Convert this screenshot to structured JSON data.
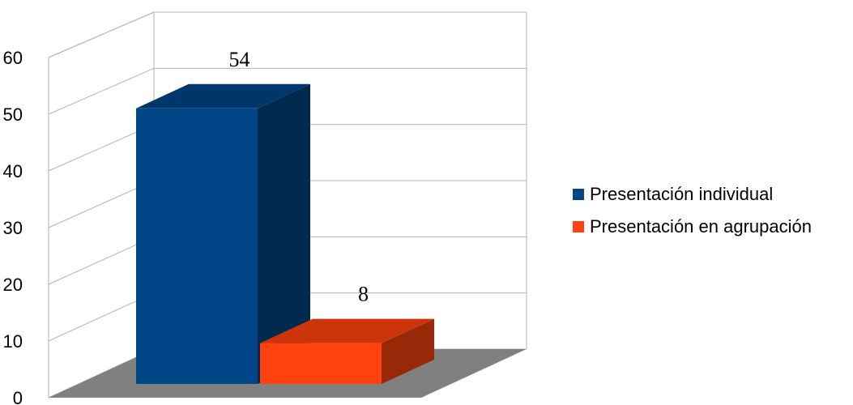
{
  "chart_data": {
    "type": "bar",
    "categories": [
      ""
    ],
    "series": [
      {
        "name": "Presentación individual",
        "values": [
          54
        ],
        "color": "#004586"
      },
      {
        "name": "Presentación en agrupación",
        "values": [
          8
        ],
        "color": "#ff420e"
      }
    ],
    "data_labels": [
      "54",
      "8"
    ],
    "yticks": [
      "0",
      "10",
      "20",
      "30",
      "40",
      "50",
      "60"
    ],
    "ylim": [
      0,
      60
    ],
    "grid": true,
    "three_d": true,
    "floor_color": "#808080",
    "legend_position": "right",
    "title": "",
    "xlabel": "",
    "ylabel": ""
  }
}
